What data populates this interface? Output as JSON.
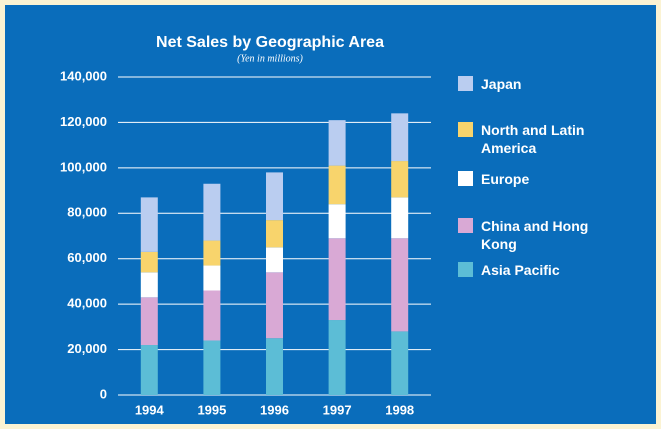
{
  "chart_data": {
    "type": "stacked_bar",
    "title": "Net Sales by Geographic Area",
    "subtitle": "(Yen in millions)",
    "categories": [
      "1994",
      "1995",
      "1996",
      "1997",
      "1998"
    ],
    "series": [
      {
        "name": "Asia Pacific",
        "color": "#5cbdd6",
        "values": [
          22000,
          24000,
          25000,
          33000,
          28000
        ]
      },
      {
        "name": "China and Hong Kong",
        "color": "#d9a9d5",
        "values": [
          21000,
          22000,
          29000,
          36000,
          41000
        ]
      },
      {
        "name": "Europe",
        "color": "#ffffff",
        "values": [
          11000,
          11000,
          11000,
          15000,
          18000
        ]
      },
      {
        "name": "North and Latin America",
        "color": "#f8d46c",
        "values": [
          9000,
          11000,
          12000,
          17000,
          16000
        ]
      },
      {
        "name": "Japan",
        "color": "#bacdf0",
        "values": [
          24000,
          25000,
          21000,
          20000,
          21000
        ]
      }
    ],
    "ylim": [
      0,
      140000
    ],
    "yticks": [
      0,
      {
        "value": 20000,
        "label": "20,000"
      },
      {
        "value": 40000,
        "label": "40,000"
      },
      {
        "value": 60000,
        "label": "60,000"
      },
      {
        "value": 80000,
        "label": "80,000"
      },
      {
        "value": 100000,
        "label": "100,000"
      },
      {
        "value": 120000,
        "label": "120,000"
      },
      {
        "value": 140000,
        "label": "140,000"
      }
    ],
    "grid": true,
    "legend": "right"
  }
}
